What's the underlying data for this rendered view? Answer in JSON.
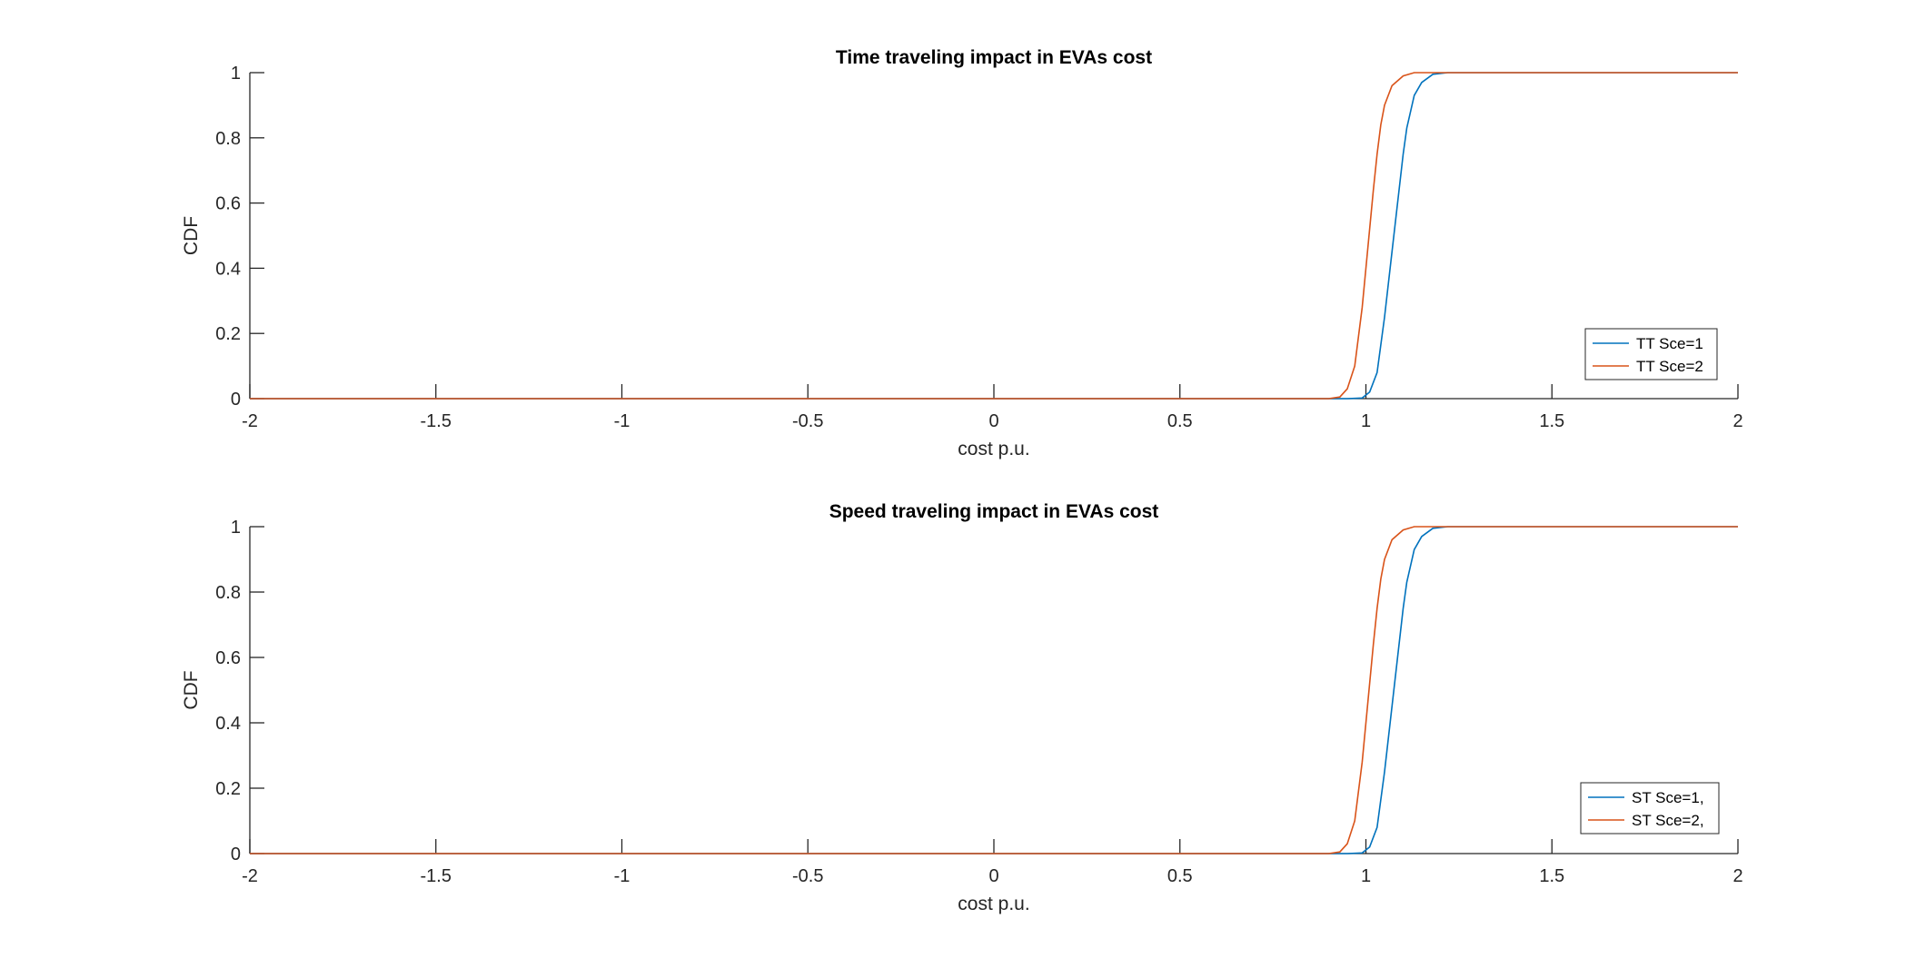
{
  "colors": {
    "series1": "#0072BD",
    "series2": "#D95319",
    "axis": "#262626"
  },
  "chart_data": [
    {
      "type": "line",
      "title": "Time traveling impact in EVAs cost",
      "xlabel": "cost p.u.",
      "ylabel": "CDF",
      "xlim": [
        -2,
        2
      ],
      "ylim": [
        0,
        1
      ],
      "xticks": [
        -2,
        -1.5,
        -1,
        -0.5,
        0,
        0.5,
        1,
        1.5,
        2
      ],
      "xtick_labels": [
        "-2",
        "-1.5",
        "-1",
        "-0.5",
        "0",
        "0.5",
        "1",
        "1.5",
        "2"
      ],
      "yticks": [
        0,
        0.2,
        0.4,
        0.6,
        0.8,
        1
      ],
      "ytick_labels": [
        "0",
        "0.2",
        "0.4",
        "0.6",
        "0.8",
        "1"
      ],
      "grid": false,
      "legend_position": "bottom-right",
      "series": [
        {
          "name": "TT Sce=1",
          "color": "#0072BD",
          "x": [
            -2,
            0.95,
            0.99,
            1.01,
            1.03,
            1.05,
            1.07,
            1.08,
            1.09,
            1.1,
            1.11,
            1.13,
            1.15,
            1.18,
            1.22,
            2
          ],
          "y": [
            0,
            0,
            0.002,
            0.02,
            0.08,
            0.25,
            0.45,
            0.55,
            0.65,
            0.75,
            0.83,
            0.93,
            0.97,
            0.995,
            1,
            1
          ]
        },
        {
          "name": "TT Sce=2",
          "color": "#D95319",
          "x": [
            -2,
            0.9,
            0.93,
            0.95,
            0.97,
            0.99,
            1.0,
            1.01,
            1.02,
            1.03,
            1.04,
            1.05,
            1.07,
            1.1,
            1.13,
            2
          ],
          "y": [
            0,
            0,
            0.005,
            0.03,
            0.1,
            0.28,
            0.4,
            0.52,
            0.64,
            0.75,
            0.84,
            0.9,
            0.96,
            0.99,
            1,
            1
          ]
        }
      ]
    },
    {
      "type": "line",
      "title": "Speed traveling impact in EVAs cost",
      "xlabel": "cost p.u.",
      "ylabel": "CDF",
      "xlim": [
        -2,
        2
      ],
      "ylim": [
        0,
        1
      ],
      "xticks": [
        -2,
        -1.5,
        -1,
        -0.5,
        0,
        0.5,
        1,
        1.5,
        2
      ],
      "xtick_labels": [
        "-2",
        "-1.5",
        "-1",
        "-0.5",
        "0",
        "0.5",
        "1",
        "1.5",
        "2"
      ],
      "yticks": [
        0,
        0.2,
        0.4,
        0.6,
        0.8,
        1
      ],
      "ytick_labels": [
        "0",
        "0.2",
        "0.4",
        "0.6",
        "0.8",
        "1"
      ],
      "grid": false,
      "legend_position": "bottom-right",
      "series": [
        {
          "name": "ST Sce=1,",
          "color": "#0072BD",
          "x": [
            -2,
            0.95,
            0.99,
            1.01,
            1.03,
            1.05,
            1.07,
            1.08,
            1.09,
            1.1,
            1.11,
            1.13,
            1.15,
            1.18,
            1.22,
            2
          ],
          "y": [
            0,
            0,
            0.002,
            0.02,
            0.08,
            0.25,
            0.45,
            0.55,
            0.65,
            0.75,
            0.83,
            0.93,
            0.97,
            0.995,
            1,
            1
          ]
        },
        {
          "name": "ST Sce=2,",
          "color": "#D95319",
          "x": [
            -2,
            0.9,
            0.93,
            0.95,
            0.97,
            0.99,
            1.0,
            1.01,
            1.02,
            1.03,
            1.04,
            1.05,
            1.07,
            1.1,
            1.13,
            2
          ],
          "y": [
            0,
            0,
            0.005,
            0.03,
            0.1,
            0.28,
            0.4,
            0.52,
            0.64,
            0.75,
            0.84,
            0.9,
            0.96,
            0.99,
            1,
            1
          ]
        }
      ]
    }
  ]
}
